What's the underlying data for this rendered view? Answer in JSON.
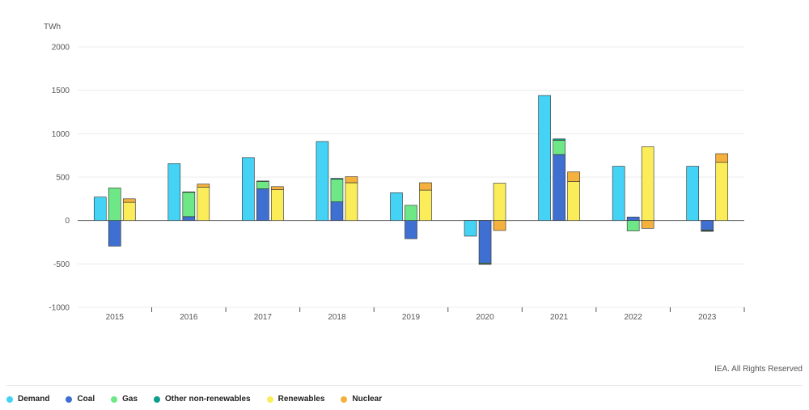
{
  "chart_data": {
    "type": "bar",
    "ylabel": "TWh",
    "ylim": [
      -1000,
      2000
    ],
    "yticks": [
      2000,
      1500,
      1000,
      500,
      0,
      -500,
      -1000
    ],
    "grid": true,
    "legend_position": "bottom-left",
    "categories": [
      "2015",
      "2016",
      "2017",
      "2018",
      "2019",
      "2020",
      "2021",
      "2022",
      "2023"
    ],
    "demand": {
      "name": "Demand",
      "color": "#45d3f5",
      "values": [
        270,
        655,
        725,
        910,
        320,
        -180,
        1440,
        625,
        625
      ]
    },
    "stacked_series": [
      {
        "name": "Coal",
        "color": "#3f6fd1",
        "stack": "supply",
        "values": [
          -295,
          45,
          365,
          215,
          -210,
          -490,
          760,
          40,
          -110
        ]
      },
      {
        "name": "Gas",
        "color": "#6ee787",
        "stack": "supply",
        "values": [
          375,
          280,
          85,
          260,
          175,
          -10,
          165,
          -120,
          -10
        ]
      },
      {
        "name": "Other non-renewables",
        "color": "#0e9e8c",
        "stack": "supply",
        "values": [
          0,
          5,
          5,
          10,
          0,
          -5,
          15,
          0,
          -5
        ]
      },
      {
        "name": "Renewables",
        "color": "#fbec5a",
        "stack": "clean",
        "values": [
          210,
          385,
          355,
          435,
          350,
          430,
          450,
          850,
          670
        ]
      },
      {
        "name": "Nuclear",
        "color": "#f5b13e",
        "stack": "clean",
        "values": [
          40,
          35,
          35,
          70,
          85,
          -115,
          110,
          -90,
          100
        ]
      }
    ]
  },
  "credit": "IEA. All Rights Reserved",
  "legend": [
    {
      "label": "Demand",
      "color": "#45d3f5"
    },
    {
      "label": "Coal",
      "color": "#3f6fd1"
    },
    {
      "label": "Gas",
      "color": "#6ee787"
    },
    {
      "label": "Other non-renewables",
      "color": "#0e9e8c"
    },
    {
      "label": "Renewables",
      "color": "#fbec5a"
    },
    {
      "label": "Nuclear",
      "color": "#f5b13e"
    }
  ]
}
